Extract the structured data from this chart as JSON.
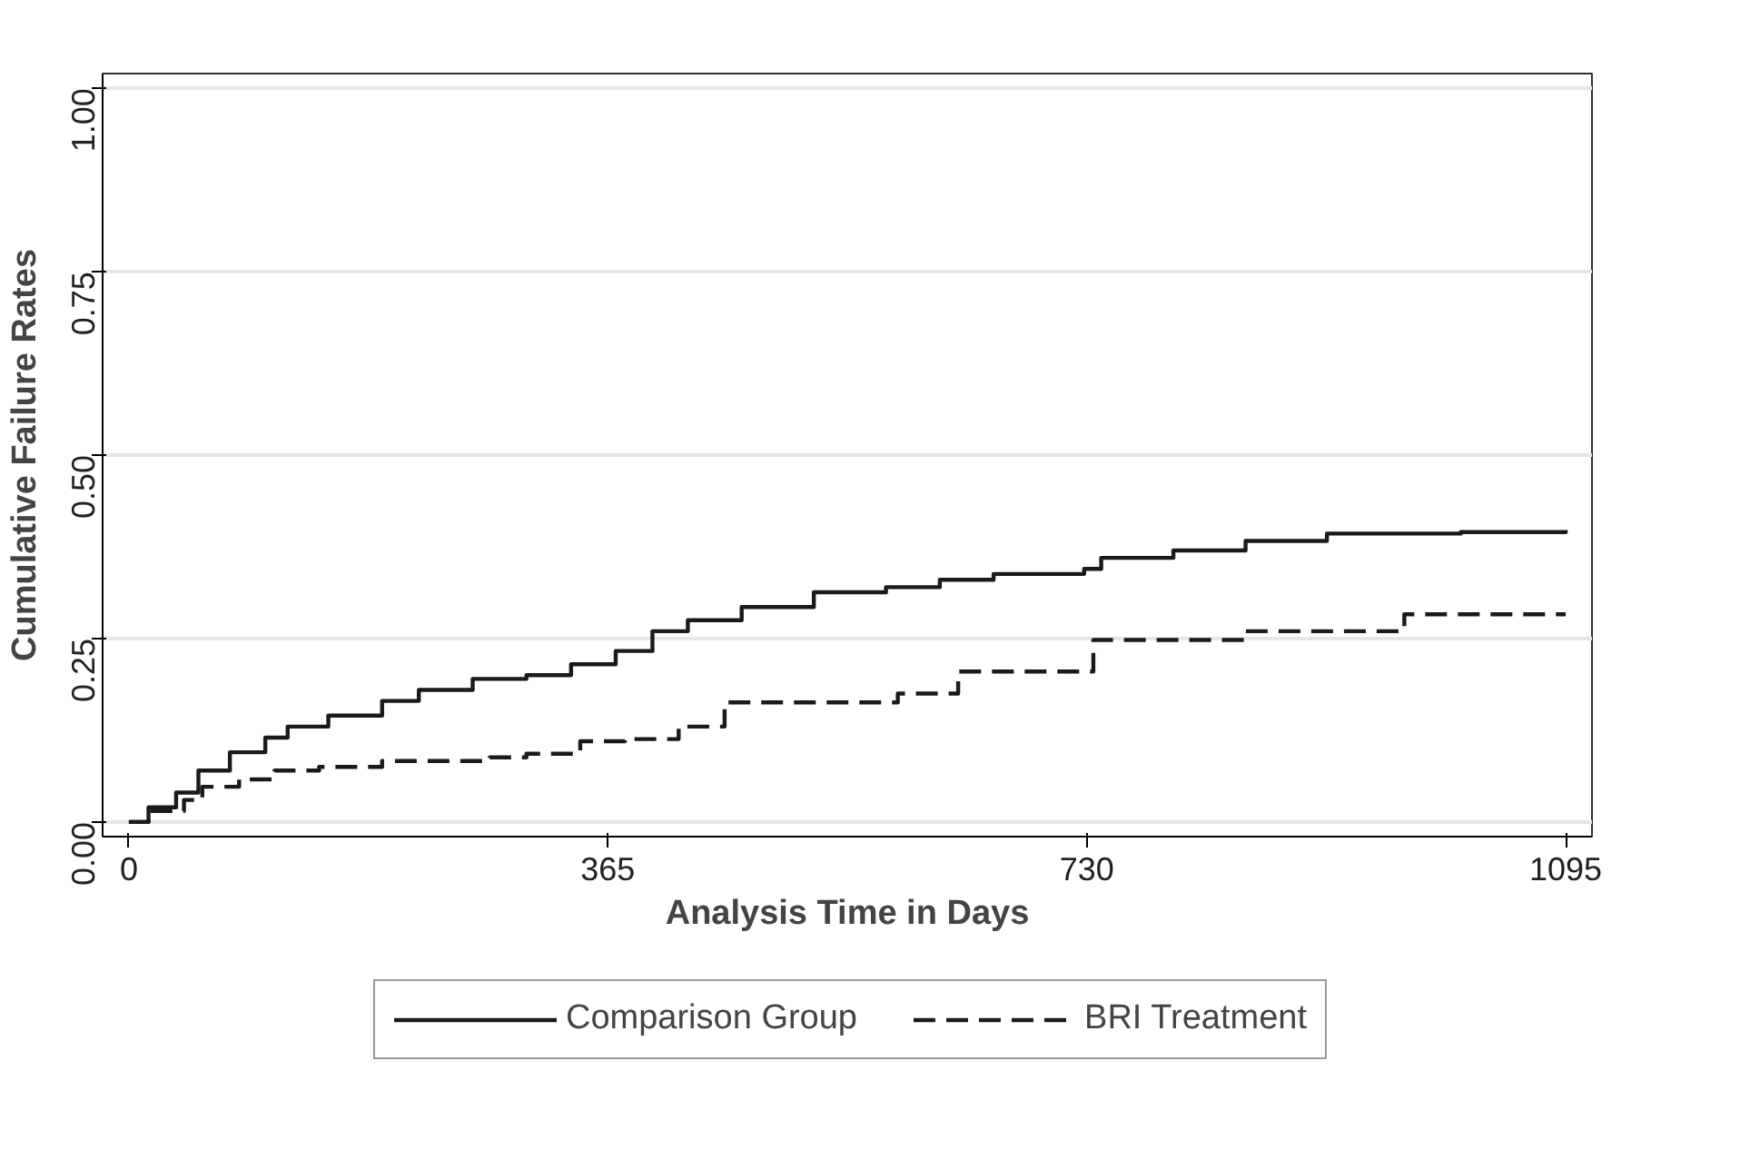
{
  "chart_data": {
    "type": "step",
    "xlabel": "Analysis Time in Days",
    "ylabel": "Cumulative Failure Rates",
    "xlim": [
      -20,
      1115
    ],
    "ylim": [
      -0.02,
      1.02
    ],
    "xticks": [
      0,
      365,
      730,
      1095
    ],
    "yticks": [
      {
        "value": 0,
        "label": "0.00"
      },
      {
        "value": 0.25,
        "label": "0.25"
      },
      {
        "value": 0.5,
        "label": "0.50"
      },
      {
        "value": 0.75,
        "label": "0.75"
      },
      {
        "value": 1,
        "label": "1.00"
      }
    ],
    "grid": "y",
    "legend": "bottom",
    "series": [
      {
        "name": "Comparison Group",
        "color": "#1a1a1a",
        "line_style": "solid",
        "x": [
          0,
          15,
          36,
          53,
          77,
          104,
          121,
          152,
          193,
          221,
          262,
          303,
          337,
          371,
          399,
          426,
          467,
          522,
          577,
          618,
          659,
          728,
          741,
          796,
          851,
          913,
          1015,
          1095
        ],
        "values": [
          0,
          0.02,
          0.04,
          0.07,
          0.095,
          0.115,
          0.13,
          0.145,
          0.165,
          0.18,
          0.195,
          0.2,
          0.215,
          0.233,
          0.26,
          0.275,
          0.293,
          0.313,
          0.32,
          0.33,
          0.338,
          0.345,
          0.36,
          0.37,
          0.383,
          0.393,
          0.395,
          0.398
        ]
      },
      {
        "name": "BRI Treatment",
        "color": "#1a1a1a",
        "line_style": "dashed",
        "x": [
          0,
          15,
          42,
          56,
          84,
          111,
          145,
          193,
          275,
          303,
          344,
          378,
          419,
          454,
          586,
          632,
          735,
          851,
          972,
          1095
        ],
        "values": [
          0,
          0.015,
          0.03,
          0.048,
          0.058,
          0.07,
          0.075,
          0.083,
          0.088,
          0.093,
          0.11,
          0.113,
          0.13,
          0.163,
          0.175,
          0.205,
          0.248,
          0.26,
          0.283,
          0.283
        ]
      }
    ]
  }
}
